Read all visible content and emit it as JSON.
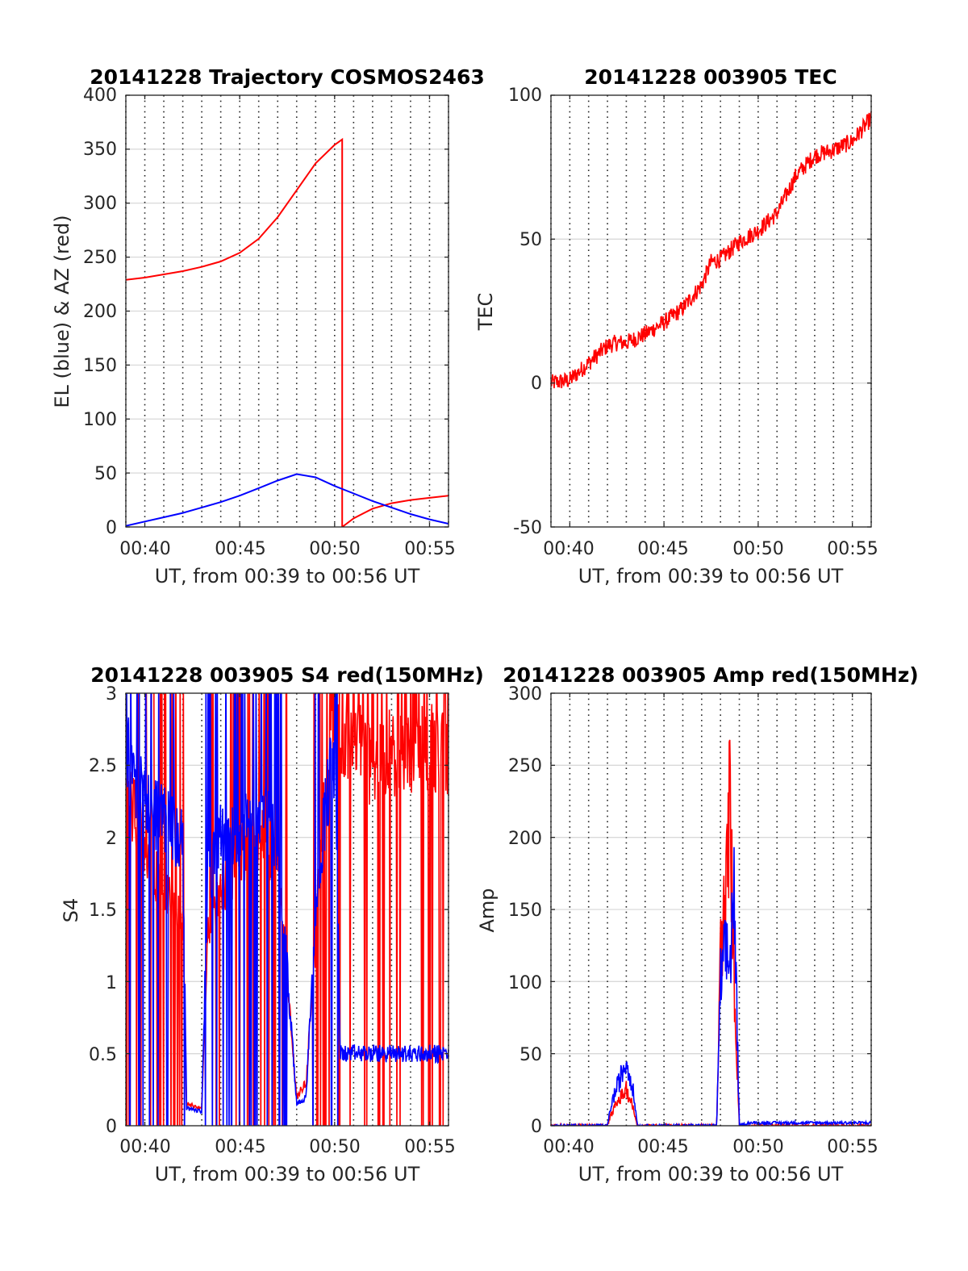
{
  "chart_data": [
    {
      "id": "trajectory",
      "type": "line",
      "title": "20141228 Trajectory COSMOS2463",
      "xlabel": "UT, from 00:39 to 00:56 UT",
      "ylabel": "EL (blue) & AZ (red)",
      "xlim": [
        "00:39",
        "00:56"
      ],
      "ylim": [
        0,
        400
      ],
      "x_ticks": [
        "00:40",
        "00:45",
        "00:50",
        "00:55"
      ],
      "y_ticks": [
        "0",
        "50",
        "100",
        "150",
        "200",
        "250",
        "300",
        "350",
        "400"
      ],
      "grid": true,
      "series": [
        {
          "color": "#ff0000",
          "x": [
            "00:39",
            "00:40",
            "00:41",
            "00:42",
            "00:43",
            "00:44",
            "00:45",
            "00:46",
            "00:47",
            "00:48",
            "00:49",
            "00:50",
            "00:50.4",
            "00:50.4",
            "00:51",
            "00:52",
            "00:53",
            "00:54",
            "00:55",
            "00:56"
          ],
          "y": [
            229,
            231,
            234,
            237,
            241,
            246,
            254,
            267,
            287,
            312,
            337,
            354,
            359,
            0,
            8,
            17,
            22,
            25,
            27,
            29
          ]
        },
        {
          "color": "#0000ff",
          "x": [
            "00:39",
            "00:40",
            "00:41",
            "00:42",
            "00:43",
            "00:44",
            "00:45",
            "00:46",
            "00:47",
            "00:48",
            "00:49",
            "00:50",
            "00:51",
            "00:52",
            "00:53",
            "00:54",
            "00:55",
            "00:56"
          ],
          "y": [
            1,
            5,
            9,
            13,
            18,
            23,
            29,
            36,
            43,
            49,
            46,
            38,
            31,
            24,
            18,
            12,
            7,
            3
          ]
        }
      ]
    },
    {
      "id": "tec",
      "type": "line",
      "title": "20141228 003905 TEC",
      "xlabel": "UT, from 00:39 to 00:56 UT",
      "ylabel": "TEC",
      "xlim": [
        "00:39",
        "00:56"
      ],
      "ylim": [
        -50,
        100
      ],
      "x_ticks": [
        "00:40",
        "00:45",
        "00:50",
        "00:55"
      ],
      "y_ticks": [
        "-50",
        "0",
        "50",
        "100"
      ],
      "grid": true,
      "noise": 1.0,
      "series": [
        {
          "color": "#ff0000",
          "x": [
            "00:39",
            "00:40",
            "00:41",
            "00:42",
            "00:42.5",
            "00:43",
            "00:44",
            "00:45",
            "00:46",
            "00:47",
            "00:47.5",
            "00:48",
            "00:49",
            "00:50",
            "00:51",
            "00:52",
            "00:53",
            "00:54",
            "00:55",
            "00:56"
          ],
          "y": [
            0,
            1,
            7,
            13,
            14,
            14,
            17,
            21,
            26,
            34,
            42,
            43,
            49,
            53,
            59,
            72,
            79,
            81,
            84,
            92
          ]
        }
      ]
    },
    {
      "id": "s4",
      "type": "line",
      "title": "20141228 003905 S4 red(150MHz)",
      "xlabel": "UT, from 00:39 to 00:56 UT",
      "ylabel": "S4",
      "xlim": [
        "00:39",
        "00:56"
      ],
      "ylim": [
        0,
        3
      ],
      "x_ticks": [
        "00:40",
        "00:45",
        "00:50",
        "00:55"
      ],
      "y_ticks": [
        "0",
        "0.5",
        "1",
        "1.5",
        "2",
        "2.5",
        "3"
      ],
      "grid": true,
      "noise": 0.9,
      "series": [
        {
          "color": "#ff0000",
          "x": [
            "00:39",
            "00:40",
            "00:41",
            "00:42",
            "00:42.2",
            "00:43",
            "00:43.3",
            "00:44",
            "00:45",
            "00:46",
            "00:47",
            "00:48",
            "00:48.5",
            "00:49",
            "00:49.5",
            "00:50",
            "00:51",
            "00:52",
            "00:53",
            "00:54",
            "00:55",
            "00:56"
          ],
          "y": [
            2.3,
            2.0,
            1.6,
            1.4,
            0.15,
            0.12,
            1.3,
            1.6,
            1.9,
            2.0,
            1.8,
            0.2,
            0.3,
            1.3,
            2.3,
            2.8,
            2.7,
            2.5,
            2.6,
            2.6,
            2.6,
            2.6
          ]
        },
        {
          "color": "#0000ff",
          "x": [
            "00:39",
            "00:40",
            "00:41",
            "00:42",
            "00:42.2",
            "00:43",
            "00:43.3",
            "00:44",
            "00:45",
            "00:46",
            "00:47",
            "00:48",
            "00:48.5",
            "00:49",
            "00:49.5",
            "00:50",
            "00:50.3",
            "00:51",
            "00:52",
            "00:53",
            "00:54",
            "00:55",
            "00:56"
          ],
          "y": [
            2.6,
            2.2,
            2.1,
            2.0,
            0.12,
            0.1,
            1.7,
            2.0,
            2.1,
            2.2,
            2.0,
            0.15,
            0.2,
            1.5,
            2.2,
            2.6,
            0.5,
            0.5,
            0.5,
            0.5,
            0.5,
            0.5,
            0.5
          ]
        }
      ]
    },
    {
      "id": "amp",
      "type": "line",
      "title": "20141228 003905 Amp red(150MHz)",
      "xlabel": "UT, from 00:39 to 00:56 UT",
      "ylabel": "Amp",
      "xlim": [
        "00:39",
        "00:56"
      ],
      "ylim": [
        0,
        300
      ],
      "x_ticks": [
        "00:40",
        "00:45",
        "00:50",
        "00:55"
      ],
      "y_ticks": [
        "0",
        "50",
        "100",
        "150",
        "200",
        "250",
        "300"
      ],
      "grid": true,
      "noise": 0.6,
      "series": [
        {
          "color": "#ff0000",
          "x": [
            "00:39",
            "00:42",
            "00:42.2",
            "00:42.6",
            "00:43",
            "00:43.3",
            "00:43.6",
            "00:47.8",
            "00:48.0",
            "00:48.3",
            "00:48.5",
            "00:48.7",
            "00:49.0",
            "00:56"
          ],
          "y": [
            0,
            0,
            8,
            18,
            25,
            15,
            0,
            0,
            120,
            160,
            230,
            110,
            0,
            0
          ]
        },
        {
          "color": "#0000ff",
          "x": [
            "00:39",
            "00:42",
            "00:42.2",
            "00:42.6",
            "00:43",
            "00:43.3",
            "00:43.6",
            "00:47.8",
            "00:48.0",
            "00:48.3",
            "00:48.5",
            "00:48.7",
            "00:49.0",
            "00:49.5",
            "00:56"
          ],
          "y": [
            0,
            0,
            15,
            30,
            45,
            30,
            0,
            0,
            100,
            120,
            110,
            170,
            0,
            2,
            2
          ]
        }
      ]
    }
  ]
}
